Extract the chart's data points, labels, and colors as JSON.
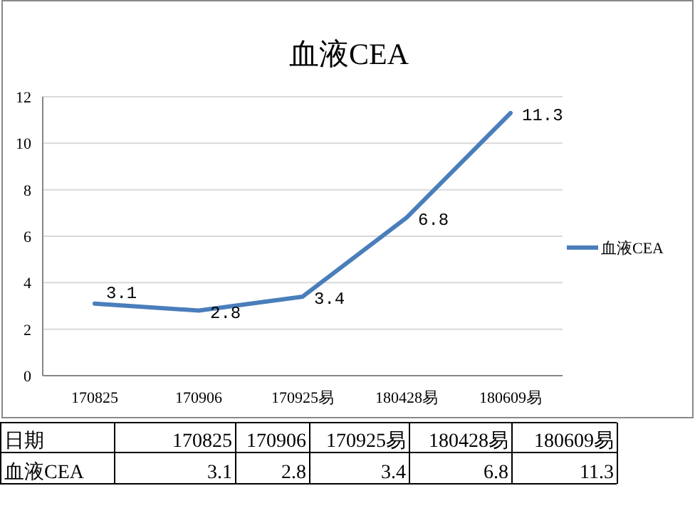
{
  "chart_data": [
    {
      "type": "line",
      "title": "血液CEA",
      "categories": [
        "170825",
        "170906",
        "170925易",
        "180428易",
        "180609易"
      ],
      "series": [
        {
          "name": "血液CEA",
          "color": "#4a7ebb",
          "values": [
            3.1,
            2.8,
            3.4,
            6.8,
            11.3
          ]
        }
      ],
      "ylim": [
        0,
        12
      ],
      "yticks": [
        0,
        2,
        4,
        6,
        8,
        10,
        12
      ],
      "grid": "y",
      "legend": "right",
      "data_labels": true,
      "marker": "none",
      "line_style": "solid"
    },
    {
      "type": "other",
      "annotations": [
        "日期"
      ],
      "categories": [
        "170825",
        "170906",
        "170925易",
        "180428易",
        "180609易"
      ],
      "series": [
        {
          "name": "血液CEA",
          "values": [
            3.1,
            2.8,
            3.4,
            6.8,
            11.3
          ]
        }
      ],
      "data_labels": true
    }
  ]
}
